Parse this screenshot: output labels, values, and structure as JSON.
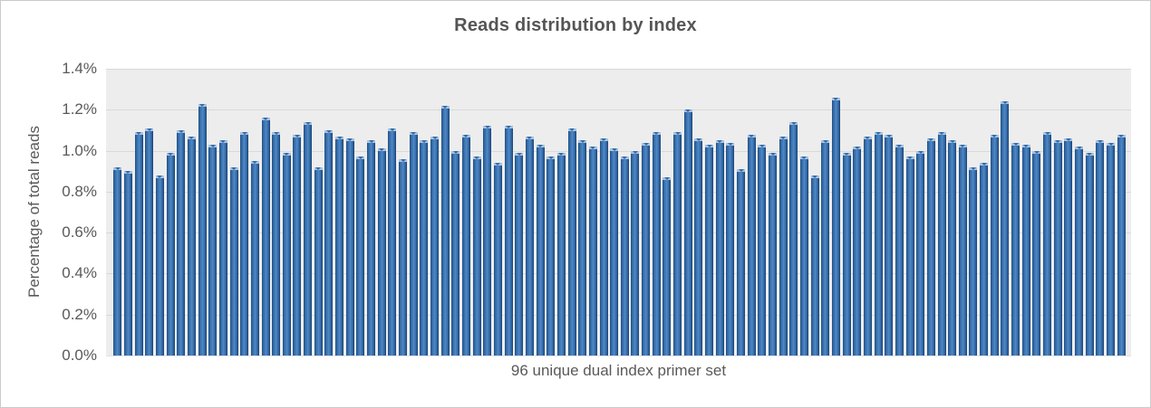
{
  "window": {
    "background_color": "#ffffff",
    "border_color": "#cbcbcb"
  },
  "chart_data": {
    "type": "bar",
    "title": "Reads distribution by index",
    "xlabel": "96 unique dual index primer set",
    "ylabel": "Percentage of total reads",
    "ylim": [
      0,
      1.4
    ],
    "ytick_step": 0.2,
    "yticks": [
      "0.0%",
      "0.2%",
      "0.4%",
      "0.6%",
      "0.8%",
      "1.0%",
      "1.2%",
      "1.4%"
    ],
    "grid": "horizontal",
    "legend": "none",
    "plot_background_color": "#ededed",
    "gridline_color": "#d9d9d9",
    "bar_color": "#3f77b5",
    "bar_color_dark": "#1d4d80",
    "bar_color_light": "#5189c7",
    "text_color": "#595959",
    "values_unit": "% of total reads",
    "num_bars": 96,
    "values": [
      0.92,
      0.9,
      1.09,
      1.11,
      0.88,
      0.99,
      1.1,
      1.07,
      1.23,
      1.03,
      1.05,
      0.92,
      1.09,
      0.95,
      1.16,
      1.09,
      0.99,
      1.08,
      1.14,
      0.92,
      1.1,
      1.07,
      1.06,
      0.97,
      1.05,
      1.01,
      1.11,
      0.96,
      1.09,
      1.05,
      1.07,
      1.22,
      1.0,
      1.08,
      0.97,
      1.12,
      0.94,
      1.12,
      0.99,
      1.07,
      1.03,
      0.97,
      0.99,
      1.11,
      1.05,
      1.02,
      1.06,
      1.01,
      0.97,
      1.0,
      1.04,
      1.09,
      0.87,
      1.09,
      1.2,
      1.06,
      1.03,
      1.05,
      1.04,
      0.91,
      1.08,
      1.03,
      0.99,
      1.07,
      1.14,
      0.97,
      0.88,
      1.05,
      1.26,
      0.99,
      1.02,
      1.07,
      1.09,
      1.08,
      1.03,
      0.97,
      1.0,
      1.06,
      1.09,
      1.05,
      1.03,
      0.92,
      0.94,
      1.08,
      1.24,
      1.04,
      1.03,
      1.0,
      1.09,
      1.05,
      1.06,
      1.02,
      0.99,
      1.05,
      1.04,
      1.08
    ]
  }
}
